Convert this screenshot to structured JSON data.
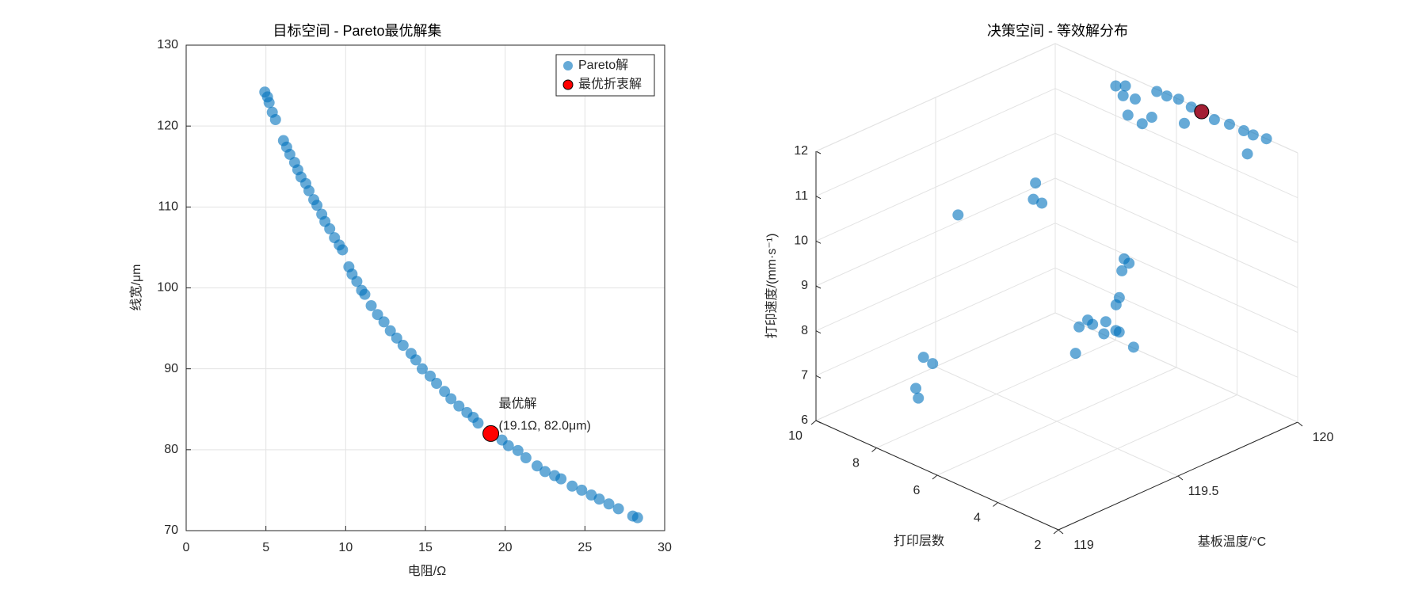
{
  "chart_data": [
    {
      "type": "scatter",
      "title": "目标空间 - Pareto最优解集",
      "xlabel": "电阻/Ω",
      "ylabel": "线宽/μm",
      "xlim": [
        0,
        30
      ],
      "xticks": [
        0,
        5,
        10,
        15,
        20,
        25,
        30
      ],
      "ylim": [
        70,
        130
      ],
      "yticks": [
        70,
        80,
        90,
        100,
        110,
        120,
        130
      ],
      "grid": true,
      "legend": "northeast",
      "series": [
        {
          "name": "Pareto解",
          "color": "#0072BD",
          "x": [
            4.93,
            5.1,
            5.2,
            5.4,
            5.6,
            6.1,
            6.3,
            6.5,
            6.8,
            7.0,
            7.2,
            7.5,
            7.7,
            8.0,
            8.2,
            8.5,
            8.7,
            9.0,
            9.3,
            9.6,
            9.8,
            10.2,
            10.4,
            10.7,
            11.0,
            11.2,
            11.6,
            12.0,
            12.4,
            12.8,
            13.2,
            13.6,
            14.1,
            14.4,
            14.8,
            15.3,
            15.7,
            16.2,
            16.6,
            17.1,
            17.6,
            18.0,
            18.3,
            19.8,
            20.2,
            20.8,
            21.3,
            22.0,
            22.5,
            23.1,
            23.5,
            24.2,
            24.8,
            25.4,
            25.9,
            26.5,
            27.1,
            28.0,
            28.3
          ],
          "values": [
            124.2,
            123.6,
            122.9,
            121.7,
            120.8,
            118.2,
            117.4,
            116.5,
            115.5,
            114.6,
            113.7,
            112.9,
            112.0,
            110.9,
            110.2,
            109.1,
            108.2,
            107.3,
            106.2,
            105.3,
            104.7,
            102.6,
            101.7,
            100.8,
            99.7,
            99.2,
            97.8,
            96.7,
            95.8,
            94.7,
            93.8,
            92.9,
            91.9,
            91.1,
            90.0,
            89.1,
            88.2,
            87.2,
            86.3,
            85.4,
            84.6,
            84.0,
            83.3,
            81.2,
            80.5,
            79.9,
            79.0,
            78.0,
            77.3,
            76.8,
            76.4,
            75.5,
            75.0,
            74.4,
            73.9,
            73.3,
            72.7,
            71.8,
            71.6
          ]
        },
        {
          "name": "最优折衷解",
          "color": "#FF0000",
          "x": [
            19.1
          ],
          "values": [
            82.0
          ]
        }
      ],
      "annotations": [
        "最优解",
        "(19.1Ω, 82.0μm)"
      ]
    },
    {
      "type": "scatter3d",
      "title": "决策空间 - 等效解分布",
      "xlabel": "基板温度/°C",
      "ylabel": "打印层数",
      "zlabel": "打印速度/(mm·s⁻¹)",
      "xlim": [
        119,
        120
      ],
      "xticks": [
        119,
        119.5,
        120
      ],
      "ylim": [
        2,
        10
      ],
      "yticks": [
        2,
        4,
        6,
        8,
        10
      ],
      "zlim": [
        6,
        12
      ],
      "zticks": [
        6,
        7,
        8,
        9,
        10,
        11,
        12
      ],
      "grid": true,
      "series": [
        {
          "color": "#0072BD",
          "x": [
            119.93,
            119.95,
            119.9,
            119.91,
            119.99,
            119.99,
            120.0,
            119.99,
            119.98,
            119.99,
            119.99,
            119.99,
            120.0,
            119.89,
            119.82,
            119.81,
            119.86,
            119.9,
            119.52,
            119.44,
            119.44,
            119.21,
            119.77,
            119.76,
            119.71,
            119.58,
            119.54,
            119.41,
            119.4,
            119.44,
            119.42,
            119.38,
            119.36,
            119.38,
            119.23,
            119.42,
            119.31,
            119.3,
            119.15,
            119.11
          ],
          "y": [
            7.45,
            7.29,
            6.97,
            6.65,
            6.57,
            6.24,
            5.93,
            5.43,
            4.59,
            4.17,
            3.7,
            3.39,
            3.03,
            2.79,
            6.18,
            5.63,
            5.71,
            4.95,
            6.86,
            6.3,
            6.02,
            6.97,
            5.91,
            5.67,
            5.51,
            4.57,
            4.36,
            4.27,
            4.03,
            3.91,
            3.42,
            3.5,
            4.16,
            2.52,
            3.25,
            3.31,
            8.9,
            8.52,
            7.89,
            7.49
          ],
          "z": [
            12,
            12,
            12,
            12,
            12,
            12,
            12,
            12,
            12,
            12,
            12,
            12,
            12,
            12,
            12,
            12,
            12,
            12,
            11,
            11,
            11,
            11,
            9,
            9,
            9,
            9,
            9,
            9,
            9,
            9,
            9,
            9,
            9,
            9,
            9,
            9,
            7,
            7,
            7,
            7
          ]
        },
        {
          "color": "#A31F34",
          "x": [
            119.99
          ],
          "y": [
            5.09
          ],
          "z": [
            12
          ]
        }
      ]
    }
  ]
}
